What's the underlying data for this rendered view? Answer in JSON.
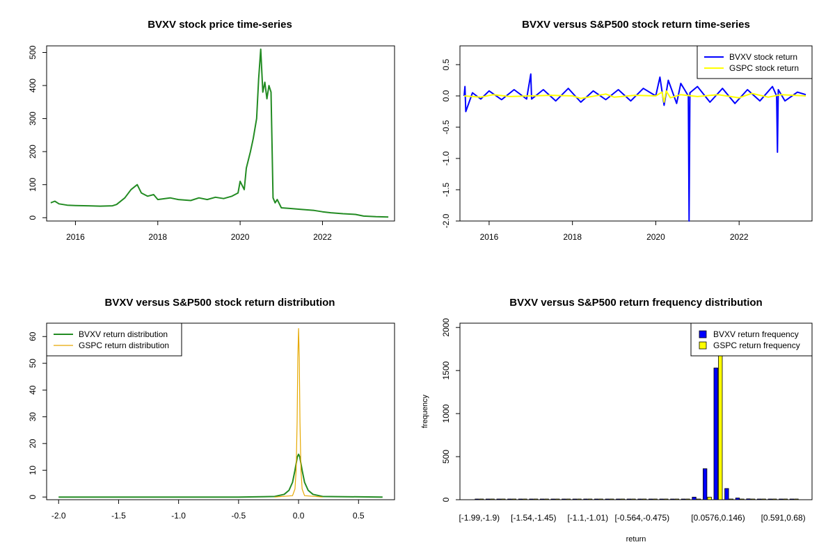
{
  "chart_data": [
    {
      "id": "price",
      "type": "line",
      "title": "BVXV stock price time-series",
      "xlabel": "",
      "ylabel": "",
      "xlim": [
        2015.3,
        2023.75
      ],
      "ylim": [
        -10,
        520
      ],
      "x_ticks": [
        2016,
        2018,
        2020,
        2022
      ],
      "x_tick_labels": [
        "2016",
        "2018",
        "2020",
        "2022"
      ],
      "y_ticks": [
        0,
        100,
        200,
        300,
        400,
        500
      ],
      "y_tick_labels": [
        "0",
        "100",
        "200",
        "300",
        "400",
        "500"
      ],
      "series": [
        {
          "color": "#228b22",
          "x": [
            2015.4,
            2015.5,
            2015.6,
            2015.8,
            2016.0,
            2016.3,
            2016.6,
            2016.9,
            2017.0,
            2017.2,
            2017.35,
            2017.5,
            2017.6,
            2017.75,
            2017.9,
            2018.0,
            2018.3,
            2018.5,
            2018.8,
            2019.0,
            2019.2,
            2019.4,
            2019.6,
            2019.8,
            2019.95,
            2020.0,
            2020.1,
            2020.15,
            2020.25,
            2020.32,
            2020.4,
            2020.45,
            2020.5,
            2020.55,
            2020.6,
            2020.65,
            2020.7,
            2020.75,
            2020.8,
            2020.85,
            2020.9,
            2021.0,
            2021.2,
            2021.5,
            2021.8,
            2022.0,
            2022.2,
            2022.5,
            2022.8,
            2023.0,
            2023.3,
            2023.6
          ],
          "y": [
            45,
            50,
            42,
            38,
            37,
            36,
            35,
            36,
            40,
            60,
            85,
            100,
            75,
            65,
            70,
            55,
            60,
            55,
            52,
            60,
            55,
            62,
            58,
            65,
            75,
            110,
            85,
            150,
            200,
            240,
            300,
            420,
            510,
            380,
            410,
            360,
            400,
            380,
            60,
            45,
            55,
            30,
            28,
            25,
            22,
            18,
            15,
            12,
            10,
            5,
            3,
            2
          ]
        }
      ]
    },
    {
      "id": "returns",
      "type": "line",
      "title": "BVXV versus S&P500 stock return time-series",
      "xlabel": "",
      "ylabel": "",
      "xlim": [
        2015.3,
        2023.75
      ],
      "ylim": [
        -2.0,
        0.8
      ],
      "x_ticks": [
        2016,
        2018,
        2020,
        2022
      ],
      "x_tick_labels": [
        "2016",
        "2018",
        "2020",
        "2022"
      ],
      "y_ticks": [
        0.5,
        0.0,
        -0.5,
        -1.0,
        -1.5,
        -2.0
      ],
      "y_tick_labels": [
        "0.5",
        "0.0",
        "-0.5",
        "-1.0",
        "-1.5",
        "-2.0"
      ],
      "legend": {
        "position": "top-right",
        "entries": [
          "BVXV stock return",
          "GSPC stock return"
        ]
      },
      "series": [
        {
          "name": "BVXV stock return",
          "color": "#0000ff",
          "x": [
            2015.4,
            2015.42,
            2015.44,
            2015.6,
            2015.8,
            2016.0,
            2016.3,
            2016.6,
            2016.9,
            2017.0,
            2017.02,
            2017.3,
            2017.6,
            2017.9,
            2018.2,
            2018.5,
            2018.8,
            2019.1,
            2019.4,
            2019.7,
            2020.0,
            2020.1,
            2020.2,
            2020.3,
            2020.5,
            2020.6,
            2020.78,
            2020.8,
            2020.82,
            2021.0,
            2021.3,
            2021.6,
            2021.9,
            2022.2,
            2022.5,
            2022.8,
            2022.9,
            2022.92,
            2022.94,
            2023.1,
            2023.4,
            2023.6
          ],
          "y": [
            0.0,
            0.15,
            -0.25,
            0.05,
            -0.05,
            0.08,
            -0.06,
            0.1,
            -0.05,
            0.35,
            -0.05,
            0.1,
            -0.08,
            0.12,
            -0.1,
            0.08,
            -0.06,
            0.1,
            -0.08,
            0.12,
            0.0,
            0.3,
            -0.15,
            0.25,
            -0.12,
            0.2,
            0.0,
            -2.0,
            0.05,
            0.15,
            -0.1,
            0.12,
            -0.12,
            0.1,
            -0.08,
            0.15,
            0.0,
            -0.9,
            0.1,
            -0.08,
            0.06,
            0.02
          ]
        },
        {
          "name": "GSPC stock return",
          "color": "#ffff00",
          "x": [
            2015.4,
            2015.8,
            2016.1,
            2016.5,
            2017.0,
            2017.5,
            2018.0,
            2018.2,
            2018.8,
            2019.0,
            2019.5,
            2020.0,
            2020.15,
            2020.2,
            2020.25,
            2020.35,
            2020.6,
            2021.0,
            2021.5,
            2022.0,
            2022.3,
            2022.7,
            2023.0,
            2023.6
          ],
          "y": [
            0.0,
            -0.02,
            0.02,
            -0.01,
            0.0,
            0.01,
            0.0,
            -0.04,
            0.03,
            -0.02,
            0.01,
            0.0,
            0.06,
            -0.1,
            0.08,
            -0.03,
            0.02,
            -0.01,
            0.02,
            -0.03,
            0.04,
            -0.02,
            0.02,
            0.0
          ]
        }
      ]
    },
    {
      "id": "density",
      "type": "line",
      "title": "BVXV versus S&P500 stock return distribution",
      "xlabel": "",
      "ylabel": "",
      "xlim": [
        -2.1,
        0.8
      ],
      "ylim": [
        -1,
        65
      ],
      "x_ticks": [
        -2.0,
        -1.5,
        -1.0,
        -0.5,
        0.0,
        0.5
      ],
      "x_tick_labels": [
        "-2.0",
        "-1.5",
        "-1.0",
        "-0.5",
        "0.0",
        "0.5"
      ],
      "y_ticks": [
        0,
        10,
        20,
        30,
        40,
        50,
        60
      ],
      "y_tick_labels": [
        "0",
        "10",
        "20",
        "30",
        "40",
        "50",
        "60"
      ],
      "legend": {
        "position": "top-left",
        "entries": [
          "BVXV return distribution",
          "GSPC return distribution"
        ]
      },
      "series": [
        {
          "name": "BVXV return distribution",
          "color": "#228b22",
          "x": [
            -2.0,
            -0.5,
            -0.2,
            -0.12,
            -0.08,
            -0.05,
            -0.03,
            -0.01,
            0.0,
            0.01,
            0.03,
            0.05,
            0.08,
            0.12,
            0.2,
            0.7
          ],
          "y": [
            0,
            0,
            0.2,
            1,
            2.5,
            5.5,
            10,
            15,
            16,
            15,
            10,
            5.5,
            2.5,
            1,
            0.2,
            0
          ]
        },
        {
          "name": "GSPC return distribution",
          "color": "#e6a800",
          "x": [
            -0.2,
            -0.05,
            -0.03,
            -0.02,
            -0.012,
            -0.006,
            0.0,
            0.006,
            0.012,
            0.02,
            0.03,
            0.05,
            0.2
          ],
          "y": [
            0,
            0.5,
            3,
            10,
            28,
            52,
            63,
            52,
            28,
            10,
            3,
            0.5,
            0
          ]
        }
      ]
    },
    {
      "id": "frequency",
      "type": "bar",
      "title": "BVXV versus S&P500 return frequency distribution",
      "xlabel": "return",
      "ylabel": "frequency",
      "ylim": [
        0,
        2050
      ],
      "y_ticks": [
        0,
        500,
        1000,
        1500,
        2000
      ],
      "y_tick_labels": [
        "0",
        "500",
        "1000",
        "1500",
        "2000"
      ],
      "bin_count": 30,
      "bin_label_indices": [
        0,
        5,
        10,
        15,
        22,
        28
      ],
      "bin_labels": [
        "[-1.99,-1.9)",
        "[-1.54,-1.45)",
        "[-1.1,-1.01)",
        "[-0.564,-0.475)",
        "[0.0576,0.146)",
        "[0.591,0.68)"
      ],
      "legend": {
        "position": "top-right",
        "entries": [
          "BVXV return frequency",
          "GSPC return frequency"
        ]
      },
      "series": [
        {
          "name": "BVXV return frequency",
          "color": "#0000ff",
          "values": [
            1,
            0,
            0,
            0,
            0,
            0,
            0,
            0,
            0,
            0,
            0,
            0,
            0,
            0,
            0,
            0,
            0,
            0,
            3,
            8,
            30,
            360,
            1530,
            130,
            20,
            10,
            5,
            2,
            1,
            1
          ]
        },
        {
          "name": "GSPC return frequency",
          "color": "#ffff00",
          "values": [
            0,
            0,
            0,
            0,
            0,
            0,
            0,
            0,
            0,
            0,
            0,
            0,
            0,
            0,
            0,
            0,
            0,
            0,
            0,
            0,
            0,
            30,
            2000,
            0,
            0,
            0,
            0,
            0,
            0,
            0
          ]
        }
      ]
    }
  ]
}
